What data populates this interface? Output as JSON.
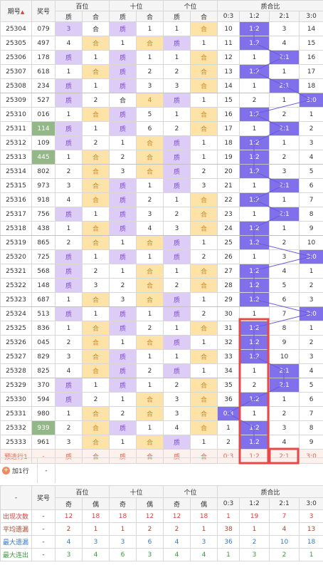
{
  "header": {
    "period": "期号",
    "sort_icon_glyph": "▲",
    "prize": "奖号",
    "groups": [
      "百位",
      "十位",
      "个位",
      "质合比"
    ],
    "sub": [
      "质",
      "合",
      "质",
      "合",
      "质",
      "合",
      "0:3",
      "1:2",
      "2:1",
      "3:0"
    ]
  },
  "rows": [
    {
      "id": "25304",
      "num": "079",
      "c": [
        "3",
        "合",
        "质",
        "1",
        "1",
        "合",
        "10",
        "1:2",
        "3",
        "14"
      ],
      "hi": [
        1,
        0,
        1,
        0,
        0,
        1,
        0,
        1,
        0,
        0
      ]
    },
    {
      "id": "25305",
      "num": "497",
      "c": [
        "4",
        "合",
        "1",
        "合",
        "质",
        "1",
        "11",
        "1:2",
        "4",
        "15"
      ],
      "hi": [
        0,
        1,
        0,
        1,
        1,
        0,
        0,
        1,
        0,
        0
      ]
    },
    {
      "id": "25306",
      "num": "178",
      "c": [
        "质",
        "1",
        "质",
        "1",
        "1",
        "合",
        "12",
        "1",
        "2:1",
        "16"
      ],
      "hi": [
        1,
        0,
        1,
        0,
        0,
        1,
        0,
        0,
        1,
        0
      ]
    },
    {
      "id": "25307",
      "num": "618",
      "c": [
        "1",
        "合",
        "质",
        "2",
        "2",
        "合",
        "13",
        "1:2",
        "1",
        "17"
      ],
      "hi": [
        0,
        1,
        1,
        0,
        0,
        1,
        0,
        1,
        0,
        0
      ]
    },
    {
      "id": "25308",
      "num": "234",
      "c": [
        "质",
        "1",
        "质",
        "3",
        "3",
        "合",
        "14",
        "1",
        "2:1",
        "18"
      ],
      "hi": [
        1,
        0,
        1,
        0,
        0,
        1,
        0,
        0,
        1,
        0
      ],
      "sep": true
    },
    {
      "id": "25309",
      "num": "527",
      "c": [
        "质",
        "2",
        "合",
        "4",
        "质",
        "1",
        "15",
        "2",
        "1",
        "3:0"
      ],
      "hi": [
        1,
        0,
        0,
        1,
        1,
        0,
        0,
        0,
        0,
        1
      ]
    },
    {
      "id": "25310",
      "num": "016",
      "c": [
        "1",
        "合",
        "质",
        "5",
        "1",
        "合",
        "16",
        "1:2",
        "2",
        "1"
      ],
      "hi": [
        0,
        1,
        1,
        0,
        0,
        1,
        0,
        1,
        0,
        0
      ]
    },
    {
      "id": "25311",
      "num": "114",
      "c": [
        "质",
        "1",
        "质",
        "6",
        "2",
        "合",
        "17",
        "1",
        "2:1",
        "2"
      ],
      "hi": [
        1,
        0,
        1,
        0,
        0,
        1,
        0,
        0,
        1,
        0
      ],
      "green": true
    },
    {
      "id": "25312",
      "num": "109",
      "c": [
        "质",
        "2",
        "1",
        "合",
        "质",
        "1",
        "18",
        "1:2",
        "1",
        "3"
      ],
      "hi": [
        1,
        0,
        0,
        1,
        1,
        0,
        0,
        1,
        0,
        0
      ]
    },
    {
      "id": "25313",
      "num": "445",
      "c": [
        "1",
        "合",
        "2",
        "合",
        "质",
        "1",
        "19",
        "1:2",
        "2",
        "4"
      ],
      "hi": [
        0,
        1,
        0,
        1,
        1,
        0,
        0,
        1,
        0,
        0
      ],
      "green": true,
      "sep": true
    },
    {
      "id": "25314",
      "num": "802",
      "c": [
        "2",
        "合",
        "3",
        "合",
        "质",
        "2",
        "20",
        "1:2",
        "3",
        "5"
      ],
      "hi": [
        0,
        1,
        0,
        1,
        1,
        0,
        0,
        1,
        0,
        0
      ]
    },
    {
      "id": "25315",
      "num": "973",
      "c": [
        "3",
        "合",
        "质",
        "1",
        "质",
        "3",
        "21",
        "1",
        "2:1",
        "6"
      ],
      "hi": [
        0,
        1,
        1,
        0,
        1,
        0,
        0,
        0,
        1,
        0
      ]
    },
    {
      "id": "25316",
      "num": "918",
      "c": [
        "4",
        "合",
        "质",
        "2",
        "1",
        "合",
        "22",
        "1:2",
        "1",
        "7"
      ],
      "hi": [
        0,
        1,
        1,
        0,
        0,
        1,
        0,
        1,
        0,
        0
      ]
    },
    {
      "id": "25317",
      "num": "756",
      "c": [
        "质",
        "1",
        "质",
        "3",
        "2",
        "合",
        "23",
        "1",
        "2:1",
        "8"
      ],
      "hi": [
        1,
        0,
        1,
        0,
        0,
        1,
        0,
        0,
        1,
        0
      ]
    },
    {
      "id": "25318",
      "num": "438",
      "c": [
        "1",
        "合",
        "质",
        "4",
        "3",
        "合",
        "24",
        "1:2",
        "1",
        "9"
      ],
      "hi": [
        0,
        1,
        1,
        0,
        0,
        1,
        0,
        1,
        0,
        0
      ],
      "sep": true
    },
    {
      "id": "25319",
      "num": "865",
      "c": [
        "2",
        "合",
        "1",
        "合",
        "质",
        "1",
        "25",
        "1:2",
        "2",
        "10"
      ],
      "hi": [
        0,
        1,
        0,
        1,
        1,
        0,
        0,
        1,
        0,
        0
      ]
    },
    {
      "id": "25320",
      "num": "725",
      "c": [
        "质",
        "1",
        "质",
        "1",
        "质",
        "2",
        "26",
        "1",
        "3",
        "3:0"
      ],
      "hi": [
        1,
        0,
        1,
        0,
        1,
        0,
        0,
        0,
        0,
        1
      ]
    },
    {
      "id": "25321",
      "num": "568",
      "c": [
        "质",
        "2",
        "1",
        "合",
        "1",
        "合",
        "27",
        "1:2",
        "4",
        "1"
      ],
      "hi": [
        1,
        0,
        0,
        1,
        0,
        1,
        0,
        1,
        0,
        0
      ]
    },
    {
      "id": "25322",
      "num": "148",
      "c": [
        "质",
        "3",
        "2",
        "合",
        "2",
        "合",
        "28",
        "1:2",
        "5",
        "2"
      ],
      "hi": [
        1,
        0,
        0,
        1,
        0,
        1,
        0,
        1,
        0,
        0
      ]
    },
    {
      "id": "25323",
      "num": "687",
      "c": [
        "1",
        "合",
        "3",
        "合",
        "质",
        "1",
        "29",
        "1:2",
        "6",
        "3"
      ],
      "hi": [
        0,
        1,
        0,
        1,
        1,
        0,
        0,
        1,
        0,
        0
      ],
      "sep": true
    },
    {
      "id": "25324",
      "num": "513",
      "c": [
        "质",
        "1",
        "质",
        "1",
        "质",
        "2",
        "30",
        "1",
        "7",
        "3:0"
      ],
      "hi": [
        1,
        0,
        1,
        0,
        1,
        0,
        0,
        0,
        0,
        1
      ]
    },
    {
      "id": "25325",
      "num": "836",
      "c": [
        "1",
        "合",
        "质",
        "2",
        "1",
        "合",
        "31",
        "1:2",
        "8",
        "1"
      ],
      "hi": [
        0,
        1,
        1,
        0,
        0,
        1,
        0,
        1,
        0,
        0
      ]
    },
    {
      "id": "25326",
      "num": "045",
      "c": [
        "2",
        "合",
        "1",
        "合",
        "质",
        "1",
        "32",
        "1:2",
        "9",
        "2"
      ],
      "hi": [
        0,
        1,
        0,
        1,
        1,
        0,
        0,
        1,
        0,
        0
      ]
    },
    {
      "id": "25327",
      "num": "829",
      "c": [
        "3",
        "合",
        "质",
        "1",
        "1",
        "合",
        "33",
        "1:2",
        "10",
        "3"
      ],
      "hi": [
        0,
        1,
        1,
        0,
        0,
        1,
        0,
        1,
        0,
        0
      ]
    },
    {
      "id": "25328",
      "num": "825",
      "c": [
        "4",
        "合",
        "质",
        "2",
        "质",
        "1",
        "34",
        "1",
        "2:1",
        "4"
      ],
      "hi": [
        0,
        1,
        1,
        0,
        1,
        0,
        0,
        0,
        1,
        0
      ],
      "sep": true
    },
    {
      "id": "25329",
      "num": "370",
      "c": [
        "质",
        "1",
        "质",
        "1",
        "2",
        "合",
        "35",
        "2",
        "2:1",
        "5"
      ],
      "hi": [
        1,
        0,
        1,
        0,
        0,
        1,
        0,
        0,
        1,
        0
      ]
    },
    {
      "id": "25330",
      "num": "594",
      "c": [
        "质",
        "2",
        "1",
        "合",
        "3",
        "合",
        "36",
        "1:2",
        "1",
        "6"
      ],
      "hi": [
        1,
        0,
        0,
        1,
        0,
        1,
        0,
        1,
        0,
        0
      ]
    },
    {
      "id": "25331",
      "num": "980",
      "c": [
        "1",
        "合",
        "2",
        "合",
        "3",
        "合",
        "0:3",
        "1",
        "2",
        "7"
      ],
      "hi": [
        0,
        1,
        0,
        1,
        0,
        1,
        1,
        0,
        0,
        0
      ]
    },
    {
      "id": "25332",
      "num": "939",
      "c": [
        "2",
        "合",
        "质",
        "1",
        "4",
        "合",
        "1",
        "1:2",
        "3",
        "8"
      ],
      "hi": [
        0,
        1,
        1,
        0,
        0,
        1,
        0,
        1,
        0,
        0
      ],
      "green": true
    },
    {
      "id": "25333",
      "num": "961",
      "c": [
        "3",
        "合",
        "1",
        "合",
        "质",
        "1",
        "2",
        "1:2",
        "4",
        "9"
      ],
      "hi": [
        0,
        1,
        0,
        1,
        1,
        0,
        0,
        1,
        0,
        0
      ]
    }
  ],
  "predict": {
    "label": "预选行1",
    "num": "-",
    "c": [
      "质",
      "合",
      "质",
      "合",
      "质",
      "合",
      "0:3",
      "1:2",
      "2:1",
      "3:0"
    ]
  },
  "add_row": {
    "label": "加1行",
    "dash": "-"
  },
  "stats": {
    "header": {
      "dash": "-",
      "prize": "奖号",
      "groups": [
        "百位",
        "十位",
        "个位",
        "质合比"
      ],
      "sub": [
        "奇",
        "偶",
        "奇",
        "偶",
        "奇",
        "偶",
        "0:3",
        "1:2",
        "2:1",
        "3:0"
      ]
    },
    "rows": [
      {
        "label": "出现次数",
        "dash": "-",
        "cls": "red",
        "v": [
          "12",
          "18",
          "18",
          "12",
          "12",
          "18",
          "1",
          "19",
          "7",
          "3"
        ]
      },
      {
        "label": "平均遗漏",
        "dash": "-",
        "cls": "brown",
        "v": [
          "2",
          "1",
          "1",
          "2",
          "2",
          "1",
          "38",
          "1",
          "4",
          "13"
        ]
      },
      {
        "label": "最大遗漏",
        "dash": "-",
        "cls": "blue",
        "v": [
          "4",
          "3",
          "3",
          "6",
          "4",
          "3",
          "36",
          "2",
          "10",
          "18"
        ]
      },
      {
        "label": "最大连出",
        "dash": "-",
        "cls": "green",
        "v": [
          "3",
          "4",
          "6",
          "3",
          "4",
          "4",
          "1",
          "3",
          "2",
          "1"
        ]
      }
    ]
  },
  "colors": {
    "odd": "#dcccf6",
    "even": "#fde3a8",
    "highlight": "#8070ec",
    "green": "#93b787",
    "red_box": "#e84848",
    "line": "#6a5ad8"
  }
}
